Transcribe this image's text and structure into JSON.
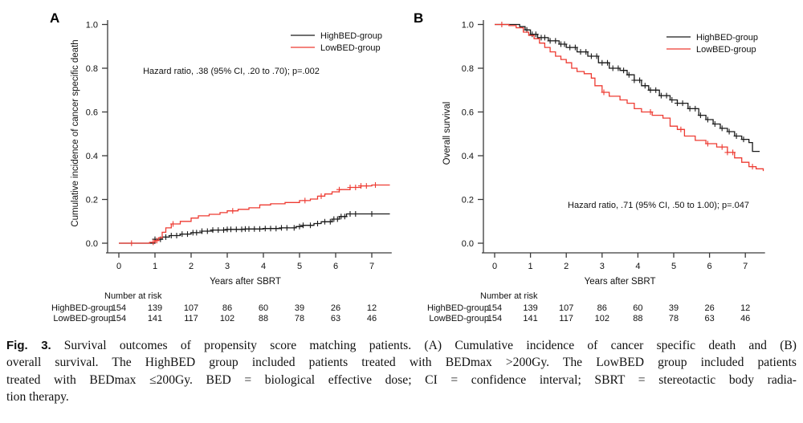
{
  "caption": {
    "fig_label": "Fig. 3.",
    "lines": [
      "Survival outcomes of propensity score matching patients. (A) Cumulative incidence of cancer specific death and (B)",
      "overall survival. The HighBED group included patients treated with BEDmax >200Gy. The LowBED group included patients",
      "treated with BEDmax ≤200Gy. BED = biological effective dose; CI = confidence interval; SBRT = stereotactic body radia-",
      "tion therapy."
    ]
  },
  "colors": {
    "high_bed": "#1a1a1a",
    "low_bed": "#ee3b32",
    "axis": "#3a3a3a"
  },
  "chart_data": [
    {
      "type": "line",
      "panel_label": "A",
      "title": "",
      "xlabel": "Years after SBRT",
      "ylabel": "Cumulative incidence of cancer specific death",
      "xlim": [
        0,
        7.5
      ],
      "ylim": [
        0,
        1.0
      ],
      "xticks": [
        0,
        1,
        2,
        3,
        4,
        5,
        6,
        7
      ],
      "yticks": [
        0.0,
        0.2,
        0.4,
        0.6,
        0.8,
        1.0
      ],
      "grid": false,
      "legend_position": "top-right",
      "annotation": "Hazard ratio, .38 (95% CI, .20 to .70); p=.002",
      "series": [
        {
          "name": "HighBED-group",
          "color": "#1a1a1a",
          "step": true,
          "points": [
            [
              0,
              0
            ],
            [
              0.9,
              0
            ],
            [
              1.0,
              0.018
            ],
            [
              1.2,
              0.028
            ],
            [
              1.4,
              0.035
            ],
            [
              1.7,
              0.042
            ],
            [
              2.0,
              0.048
            ],
            [
              2.3,
              0.055
            ],
            [
              2.6,
              0.06
            ],
            [
              3.0,
              0.063
            ],
            [
              3.5,
              0.065
            ],
            [
              4.0,
              0.067
            ],
            [
              4.5,
              0.07
            ],
            [
              4.9,
              0.076
            ],
            [
              5.1,
              0.082
            ],
            [
              5.4,
              0.09
            ],
            [
              5.6,
              0.098
            ],
            [
              5.9,
              0.11
            ],
            [
              6.1,
              0.122
            ],
            [
              6.3,
              0.134
            ],
            [
              7.5,
              0.134
            ]
          ],
          "censor_marks": [
            1.0,
            1.15,
            1.3,
            1.45,
            1.6,
            1.75,
            1.9,
            2.05,
            2.15,
            2.3,
            2.45,
            2.6,
            2.75,
            2.9,
            3.0,
            3.1,
            3.25,
            3.4,
            3.5,
            3.6,
            3.75,
            3.9,
            4.05,
            4.2,
            4.35,
            4.5,
            4.65,
            4.85,
            5.0,
            5.1,
            5.3,
            5.5,
            5.7,
            5.85,
            5.95,
            6.05,
            6.15,
            6.25,
            6.4,
            6.55,
            7.0
          ]
        },
        {
          "name": "LowBED-group",
          "color": "#ee3b32",
          "step": true,
          "points": [
            [
              0,
              0
            ],
            [
              0.85,
              0.004
            ],
            [
              1.0,
              0.012
            ],
            [
              1.1,
              0.025
            ],
            [
              1.2,
              0.05
            ],
            [
              1.3,
              0.07
            ],
            [
              1.45,
              0.088
            ],
            [
              1.7,
              0.1
            ],
            [
              2.0,
              0.115
            ],
            [
              2.2,
              0.125
            ],
            [
              2.5,
              0.132
            ],
            [
              2.8,
              0.14
            ],
            [
              3.0,
              0.148
            ],
            [
              3.3,
              0.155
            ],
            [
              3.6,
              0.162
            ],
            [
              3.9,
              0.175
            ],
            [
              4.2,
              0.18
            ],
            [
              4.6,
              0.186
            ],
            [
              5.0,
              0.195
            ],
            [
              5.3,
              0.202
            ],
            [
              5.5,
              0.215
            ],
            [
              5.7,
              0.225
            ],
            [
              5.9,
              0.235
            ],
            [
              6.1,
              0.245
            ],
            [
              6.4,
              0.255
            ],
            [
              6.7,
              0.262
            ],
            [
              7.0,
              0.266
            ],
            [
              7.5,
              0.266
            ]
          ],
          "censor_marks": [
            0.35,
            0.95,
            1.05,
            1.5,
            3.15,
            5.15,
            5.6,
            6.1,
            6.4,
            6.55,
            6.7,
            6.85,
            7.1
          ]
        }
      ],
      "number_at_risk": {
        "title": "Number at risk",
        "times": [
          0,
          1,
          2,
          3,
          4,
          5,
          6,
          7
        ],
        "rows": [
          {
            "name": "HighBED-group",
            "counts": [
              154,
              139,
              107,
              86,
              60,
              39,
              26,
              12
            ]
          },
          {
            "name": "LowBED-group",
            "counts": [
              154,
              141,
              117,
              102,
              88,
              78,
              63,
              46
            ]
          }
        ]
      }
    },
    {
      "type": "line",
      "panel_label": "B",
      "title": "",
      "xlabel": "Years after SBRT",
      "ylabel": "Overall survival",
      "xlim": [
        0,
        7.5
      ],
      "ylim": [
        0,
        1.0
      ],
      "xticks": [
        0,
        1,
        2,
        3,
        4,
        5,
        6,
        7
      ],
      "yticks": [
        0.0,
        0.2,
        0.4,
        0.6,
        0.8,
        1.0
      ],
      "grid": false,
      "legend_position": "top-right",
      "annotation": "Hazard ratio, .71 (95% CI, .50 to 1.00); p=.047",
      "series": [
        {
          "name": "HighBED-group",
          "color": "#1a1a1a",
          "step": true,
          "points": [
            [
              0,
              1.0
            ],
            [
              0.6,
              1.0
            ],
            [
              0.7,
              0.99
            ],
            [
              0.85,
              0.975
            ],
            [
              1.0,
              0.955
            ],
            [
              1.2,
              0.94
            ],
            [
              1.5,
              0.925
            ],
            [
              1.8,
              0.91
            ],
            [
              2.0,
              0.895
            ],
            [
              2.3,
              0.875
            ],
            [
              2.6,
              0.855
            ],
            [
              2.9,
              0.825
            ],
            [
              3.2,
              0.8
            ],
            [
              3.5,
              0.79
            ],
            [
              3.7,
              0.77
            ],
            [
              3.9,
              0.745
            ],
            [
              4.1,
              0.72
            ],
            [
              4.3,
              0.7
            ],
            [
              4.6,
              0.675
            ],
            [
              4.9,
              0.655
            ],
            [
              5.1,
              0.64
            ],
            [
              5.4,
              0.615
            ],
            [
              5.7,
              0.585
            ],
            [
              5.9,
              0.565
            ],
            [
              6.1,
              0.545
            ],
            [
              6.3,
              0.525
            ],
            [
              6.5,
              0.51
            ],
            [
              6.7,
              0.49
            ],
            [
              6.9,
              0.475
            ],
            [
              7.1,
              0.46
            ],
            [
              7.2,
              0.42
            ],
            [
              7.4,
              0.42
            ]
          ],
          "censor_marks": [
            0.9,
            1.05,
            1.15,
            1.3,
            1.4,
            1.55,
            1.7,
            1.85,
            1.95,
            2.1,
            2.25,
            2.4,
            2.55,
            2.7,
            2.85,
            3.0,
            3.15,
            3.3,
            3.45,
            3.6,
            3.75,
            3.9,
            4.05,
            4.2,
            4.35,
            4.5,
            4.65,
            4.8,
            4.95,
            5.1,
            5.25,
            5.45,
            5.6,
            5.75,
            5.95,
            6.15,
            6.35,
            6.55,
            6.75,
            6.95
          ]
        },
        {
          "name": "LowBED-group",
          "color": "#ee3b32",
          "step": true,
          "points": [
            [
              0,
              1.0
            ],
            [
              0.4,
              0.995
            ],
            [
              0.6,
              0.985
            ],
            [
              0.8,
              0.965
            ],
            [
              0.95,
              0.95
            ],
            [
              1.1,
              0.935
            ],
            [
              1.25,
              0.915
            ],
            [
              1.4,
              0.895
            ],
            [
              1.55,
              0.875
            ],
            [
              1.7,
              0.855
            ],
            [
              1.85,
              0.84
            ],
            [
              2.0,
              0.825
            ],
            [
              2.15,
              0.8
            ],
            [
              2.3,
              0.785
            ],
            [
              2.5,
              0.775
            ],
            [
              2.7,
              0.755
            ],
            [
              2.8,
              0.72
            ],
            [
              3.0,
              0.69
            ],
            [
              3.2,
              0.672
            ],
            [
              3.5,
              0.655
            ],
            [
              3.7,
              0.64
            ],
            [
              3.9,
              0.615
            ],
            [
              4.1,
              0.6
            ],
            [
              4.4,
              0.585
            ],
            [
              4.7,
              0.572
            ],
            [
              4.9,
              0.535
            ],
            [
              5.1,
              0.52
            ],
            [
              5.3,
              0.49
            ],
            [
              5.6,
              0.47
            ],
            [
              5.9,
              0.455
            ],
            [
              6.2,
              0.44
            ],
            [
              6.5,
              0.415
            ],
            [
              6.7,
              0.39
            ],
            [
              6.9,
              0.37
            ],
            [
              7.1,
              0.35
            ],
            [
              7.3,
              0.34
            ],
            [
              7.5,
              0.33
            ]
          ],
          "censor_marks": [
            0.2,
            3.05,
            4.35,
            5.2,
            5.95,
            6.35,
            6.5,
            6.65,
            7.2
          ]
        }
      ],
      "number_at_risk": {
        "title": "Number at risk",
        "times": [
          0,
          1,
          2,
          3,
          4,
          5,
          6,
          7
        ],
        "rows": [
          {
            "name": "HighBED-group",
            "counts": [
              154,
              139,
              107,
              86,
              60,
              39,
              26,
              12
            ]
          },
          {
            "name": "LowBED-group",
            "counts": [
              154,
              141,
              117,
              102,
              88,
              78,
              63,
              46
            ]
          }
        ]
      }
    }
  ]
}
